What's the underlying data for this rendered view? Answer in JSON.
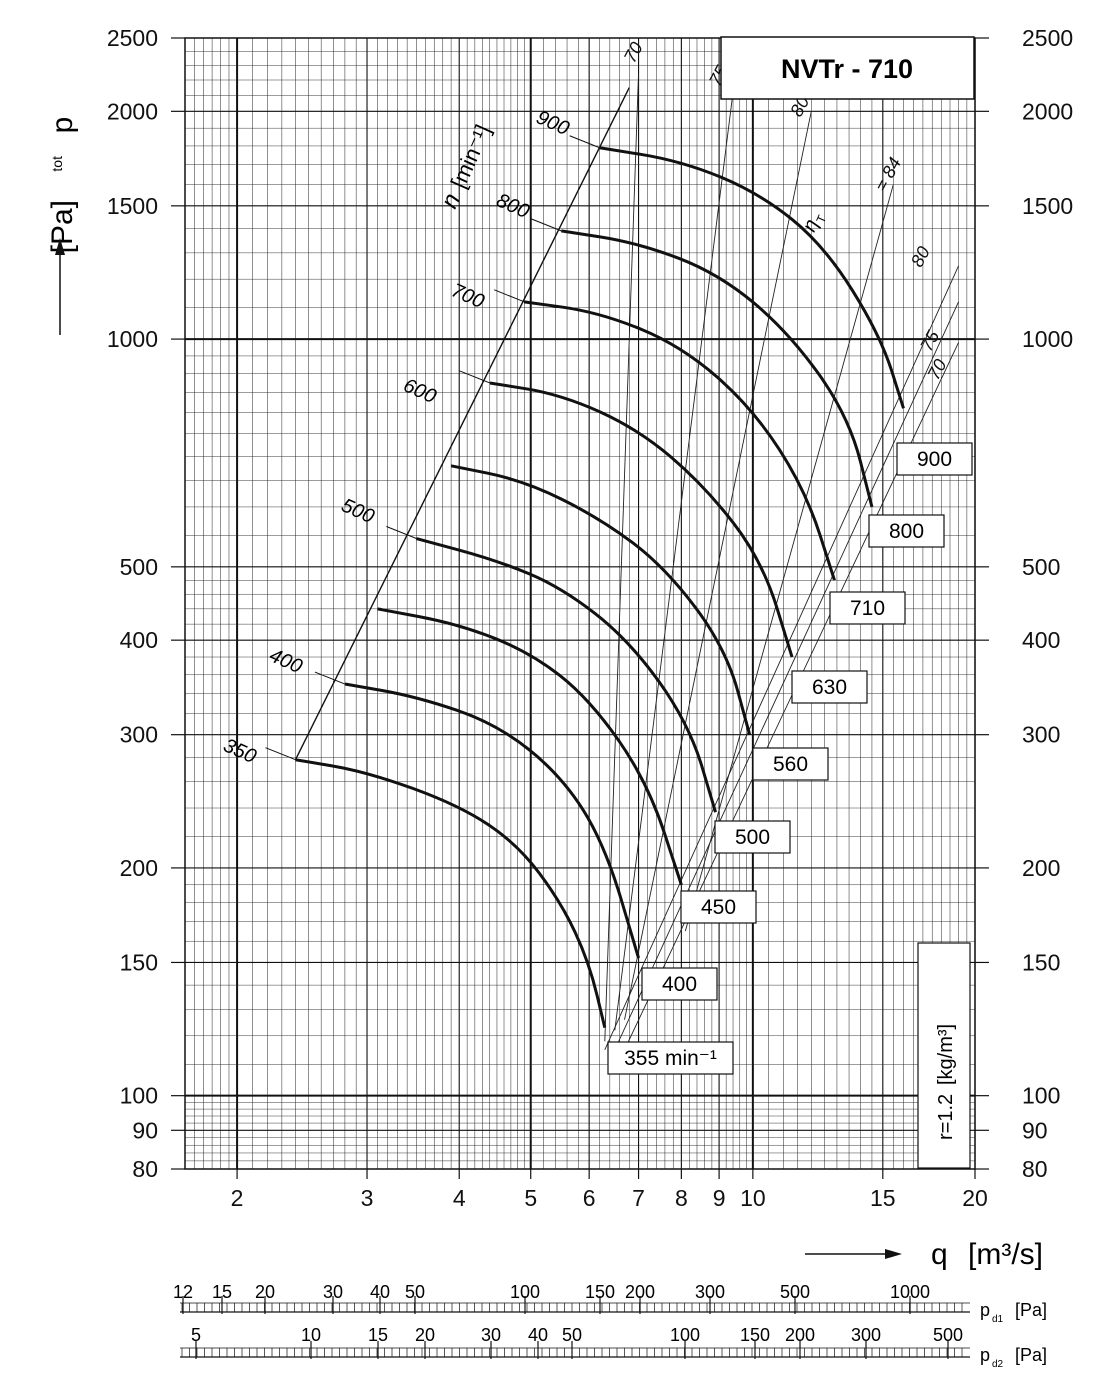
{
  "chart_data": {
    "type": "line",
    "title": "NVTr - 710",
    "x_axis": {
      "symbol": "q",
      "unit": "[m³/s]",
      "scale": "log",
      "range": [
        1.7,
        20
      ],
      "ticks": [
        2,
        3,
        4,
        5,
        6,
        7,
        8,
        9,
        10,
        15,
        20
      ]
    },
    "y_axis": {
      "symbol": "p",
      "subscript": "tot",
      "unit": "[Pa]",
      "scale": "log",
      "range": [
        80,
        2500
      ],
      "ticks": [
        80,
        90,
        100,
        150,
        200,
        300,
        400,
        500,
        1000,
        1500,
        2000,
        2500
      ]
    },
    "density_label": "r=1.2",
    "density_unit": "[kg/m³]",
    "speed_axis_label": "n",
    "speed_axis_unit": "[min⁻¹]",
    "efficiency_symbol": "η",
    "efficiency_subscript": "T",
    "efficiency_lines": [
      {
        "label": "70",
        "top_label": "70",
        "bottom_label": "70"
      },
      {
        "label": "75",
        "top_label": "75",
        "bottom_label": "75"
      },
      {
        "label": "80",
        "top_label": "80",
        "bottom_label": "80"
      },
      {
        "label": "84",
        "top_label": "= 84"
      }
    ],
    "series": [
      {
        "speed_label": "355 min⁻¹",
        "n_label": "350",
        "points": [
          [
            2.4,
            278
          ],
          [
            3.0,
            268
          ],
          [
            4.0,
            242
          ],
          [
            4.8,
            215
          ],
          [
            5.5,
            180
          ],
          [
            6.0,
            150
          ],
          [
            6.3,
            123
          ]
        ]
      },
      {
        "speed_label": "400",
        "n_label": "400",
        "points": [
          [
            2.8,
            350
          ],
          [
            3.5,
            337
          ],
          [
            4.5,
            310
          ],
          [
            5.5,
            265
          ],
          [
            6.3,
            215
          ],
          [
            7.0,
            152
          ]
        ]
      },
      {
        "speed_label": "450",
        "n_label": "",
        "points": [
          [
            3.1,
            440
          ],
          [
            4.0,
            420
          ],
          [
            5.0,
            385
          ],
          [
            6.0,
            335
          ],
          [
            7.2,
            260
          ],
          [
            8.0,
            190
          ]
        ]
      },
      {
        "speed_label": "500",
        "n_label": "500",
        "points": [
          [
            3.5,
            545
          ],
          [
            4.5,
            510
          ],
          [
            5.5,
            470
          ],
          [
            6.8,
            400
          ],
          [
            8.2,
            310
          ],
          [
            8.9,
            237
          ]
        ]
      },
      {
        "speed_label": "560",
        "n_label": "",
        "points": [
          [
            3.9,
            680
          ],
          [
            4.9,
            650
          ],
          [
            6.2,
            580
          ],
          [
            7.6,
            500
          ],
          [
            9.2,
            390
          ],
          [
            9.9,
            300
          ]
        ]
      },
      {
        "speed_label": "630",
        "n_label": "600",
        "points": [
          [
            4.4,
            875
          ],
          [
            5.5,
            845
          ],
          [
            7.0,
            760
          ],
          [
            8.6,
            640
          ],
          [
            10.3,
            510
          ],
          [
            11.3,
            380
          ]
        ]
      },
      {
        "speed_label": "710",
        "n_label": "700",
        "points": [
          [
            4.9,
            1120
          ],
          [
            6.2,
            1085
          ],
          [
            8.0,
            980
          ],
          [
            10.0,
            810
          ],
          [
            11.8,
            630
          ],
          [
            12.9,
            480
          ]
        ]
      },
      {
        "speed_label": "800",
        "n_label": "800",
        "points": [
          [
            5.5,
            1390
          ],
          [
            7.0,
            1340
          ],
          [
            9.0,
            1220
          ],
          [
            11.2,
            1020
          ],
          [
            13.5,
            790
          ],
          [
            14.5,
            600
          ]
        ]
      },
      {
        "speed_label": "900",
        "n_label": "900",
        "points": [
          [
            6.2,
            1790
          ],
          [
            8.0,
            1720
          ],
          [
            10.2,
            1560
          ],
          [
            12.5,
            1330
          ],
          [
            14.9,
            1010
          ],
          [
            16.0,
            810
          ]
        ]
      }
    ]
  },
  "dynamic_pressure_scales": [
    {
      "symbol": "p",
      "subscript": "d1",
      "unit": "[Pa]",
      "labels": [
        "12",
        "15",
        "20",
        "30",
        "40",
        "50",
        "100",
        "150",
        "200",
        "300",
        "500",
        "1000"
      ]
    },
    {
      "symbol": "p",
      "subscript": "d2",
      "unit": "[Pa]",
      "labels": [
        "5",
        "10",
        "15",
        "20",
        "30",
        "40",
        "50",
        "100",
        "150",
        "200",
        "300",
        "500"
      ]
    }
  ]
}
